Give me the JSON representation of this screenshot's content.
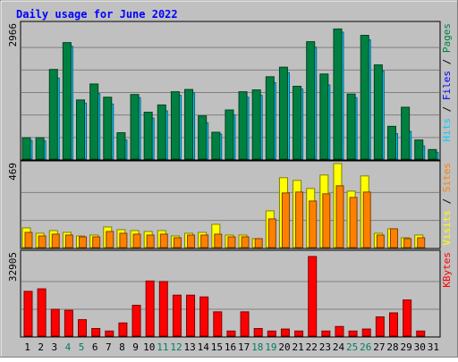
{
  "chart_data": {
    "type": "bar",
    "title": "Daily usage for June 2022",
    "categories": [
      "1",
      "2",
      "3",
      "4",
      "5",
      "6",
      "7",
      "8",
      "9",
      "10",
      "11",
      "12",
      "13",
      "14",
      "15",
      "16",
      "17",
      "18",
      "19",
      "20",
      "21",
      "22",
      "23",
      "24",
      "25",
      "26",
      "27",
      "28",
      "29",
      "30",
      "31"
    ],
    "weekend_days": [
      "4",
      "5",
      "11",
      "12",
      "18",
      "19",
      "25",
      "26"
    ],
    "panels": [
      {
        "id": "hits",
        "max_label": "2966",
        "ylim": [
          0,
          2966
        ],
        "series": [
          {
            "name": "Hits",
            "color": "#00CCFF",
            "values": [
              410,
              400,
              1780,
              2480,
              1230,
              1440,
              1210,
              420,
              1350,
              900,
              1060,
              1400,
              1460,
              800,
              550,
              970,
              1360,
              1400,
              1680,
              1900,
              1540,
              2460,
              1630,
              2790,
              1350,
              2620,
              1940,
              560,
              610,
              290,
              150
            ]
          },
          {
            "name": "Files",
            "color": "#0000FF",
            "values": [
              180,
              170,
              600,
              1140,
              370,
              400,
              280,
              140,
              260,
              240,
              280,
              320,
              300,
              180,
              130,
              220,
              300,
              320,
              360,
              460,
              280,
              560,
              330,
              580,
              220,
              300,
              260,
              150,
              130,
              60,
              30
            ]
          },
          {
            "name": "Pages",
            "color": "#008040",
            "values": [
              470,
              470,
              1970,
              2560,
              1300,
              1650,
              1360,
              580,
              1420,
              1030,
              1190,
              1480,
              1530,
              950,
              590,
              1080,
              1480,
              1520,
              1810,
              2020,
              1600,
              2580,
              1870,
              2860,
              1430,
              2720,
              2070,
              720,
              1140,
              420,
              210
            ]
          }
        ],
        "legend": [
          "Hits",
          "Files",
          "Pages"
        ]
      },
      {
        "id": "visits",
        "max_label": "469",
        "ylim": [
          0,
          469
        ],
        "series": [
          {
            "name": "Visits",
            "color": "#FFFF00",
            "values": [
              110,
              80,
              95,
              85,
              65,
              70,
              115,
              100,
              95,
              90,
              95,
              65,
              80,
              85,
              130,
              70,
              70,
              50,
              205,
              390,
              375,
              330,
              405,
              469,
              315,
              400,
              80,
              105,
              55,
              70,
              0
            ]
          },
          {
            "name": "Sites",
            "color": "#FF8000",
            "values": [
              85,
              65,
              75,
              70,
              60,
              60,
              90,
              80,
              75,
              70,
              75,
              55,
              70,
              70,
              75,
              60,
              60,
              50,
              160,
              305,
              310,
              260,
              300,
              345,
              280,
              310,
              70,
              105,
              50,
              55,
              0
            ]
          }
        ],
        "legend": [
          "Sites",
          "Visits"
        ]
      },
      {
        "id": "kbytes",
        "max_label": "32905",
        "ylim": [
          0,
          32905
        ],
        "series": [
          {
            "name": "KBytes",
            "color": "#FF0000",
            "values": [
              17700,
              18700,
              10600,
              10200,
              6500,
              3000,
              2000,
              5200,
              12200,
              21800,
              21600,
              16200,
              16200,
              15500,
              9600,
              2000,
              9600,
              3000,
              2000,
              2800,
              2000,
              31500,
              2000,
              3800,
              2000,
              2800,
              7600,
              9200,
              14300,
              2000,
              0
            ]
          }
        ],
        "legend": [
          "KBytes"
        ]
      }
    ],
    "colors": {
      "page_bg": "#C0C0C0",
      "plot_bg": "#C0C0C0",
      "title_color": "#0000FF",
      "day_label_color": "#000000",
      "weekend_label_color": "#00805C",
      "grid_color": "#808080"
    }
  }
}
